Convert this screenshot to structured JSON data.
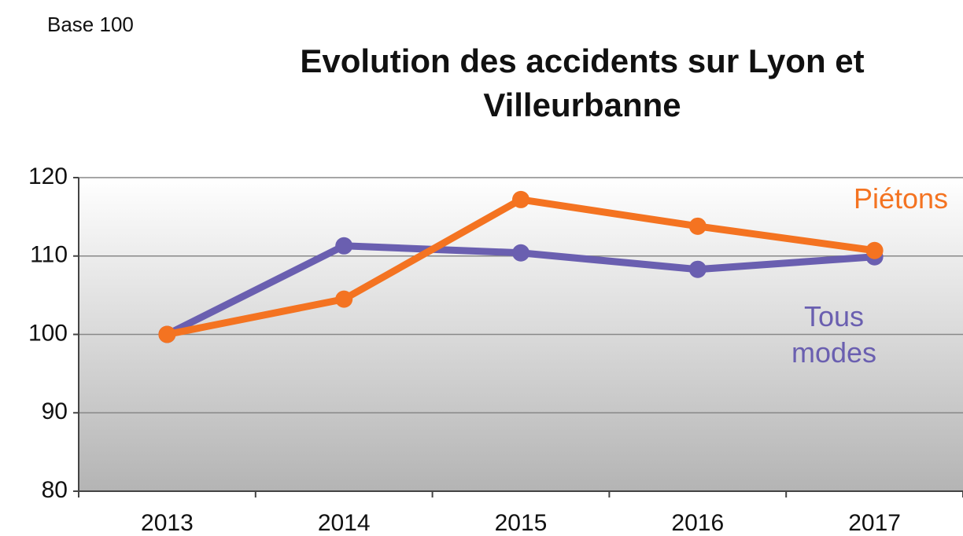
{
  "chart_data": {
    "type": "line",
    "title": "Evolution des accidents sur Lyon et Villeurbanne",
    "subtitle": "Base 100",
    "categories": [
      "2013",
      "2014",
      "2015",
      "2016",
      "2017"
    ],
    "series": [
      {
        "name": "Piétons",
        "color": "#f47321",
        "values": [
          100,
          104.5,
          117.2,
          113.8,
          110.7
        ]
      },
      {
        "name": "Tous modes",
        "color": "#6a5fb0",
        "values": [
          100,
          111.3,
          110.4,
          108.3,
          109.9
        ]
      }
    ],
    "ylim": [
      80,
      120
    ],
    "yticks": [
      80,
      90,
      100,
      110,
      120
    ],
    "grid": true
  }
}
